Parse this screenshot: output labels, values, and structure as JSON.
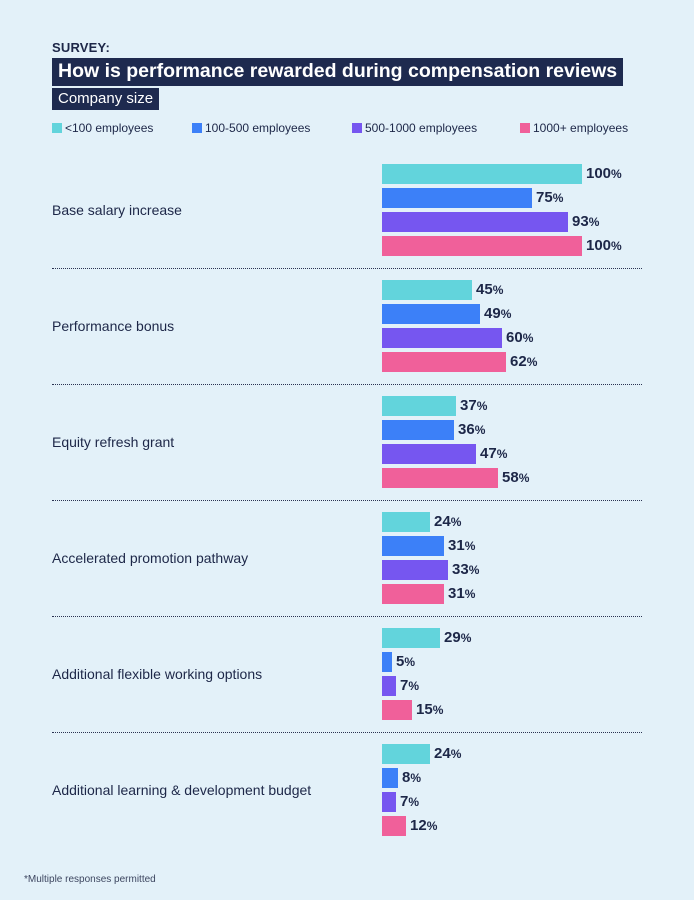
{
  "header": {
    "kicker": "SURVEY:",
    "title": "How is performance rewarded during compensation reviews",
    "subtitle": "Company size"
  },
  "colors": {
    "lt100": "#62d4dc",
    "s100_500": "#3c80f8",
    "s500_1000": "#7656f0",
    "s1000plus": "#f0609a",
    "background": "#e3f1f9",
    "title_bg": "#1e2a4f"
  },
  "chart_data": {
    "type": "bar",
    "orientation": "horizontal",
    "title": "How is performance rewarded during compensation reviews",
    "subtitle": "Company size",
    "unit": "%",
    "xlim": [
      0,
      100
    ],
    "legend_position": "top",
    "categories": [
      "Base salary increase",
      "Performance bonus",
      "Equity refresh grant",
      "Accelerated promotion pathway",
      "Additional flexible working options",
      "Additional learning & development budget"
    ],
    "series": [
      {
        "name": "<100 employees",
        "color": "#62d4dc",
        "values": [
          100,
          45,
          37,
          24,
          29,
          24
        ]
      },
      {
        "name": "100-500 employees",
        "color": "#3c80f8",
        "values": [
          75,
          49,
          36,
          31,
          5,
          8
        ]
      },
      {
        "name": "500-1000 employees",
        "color": "#7656f0",
        "values": [
          93,
          60,
          47,
          33,
          7,
          7
        ]
      },
      {
        "name": "1000+ employees",
        "color": "#f0609a",
        "values": [
          100,
          62,
          58,
          31,
          15,
          12
        ]
      }
    ]
  },
  "footnote": "*Multiple responses permitted"
}
